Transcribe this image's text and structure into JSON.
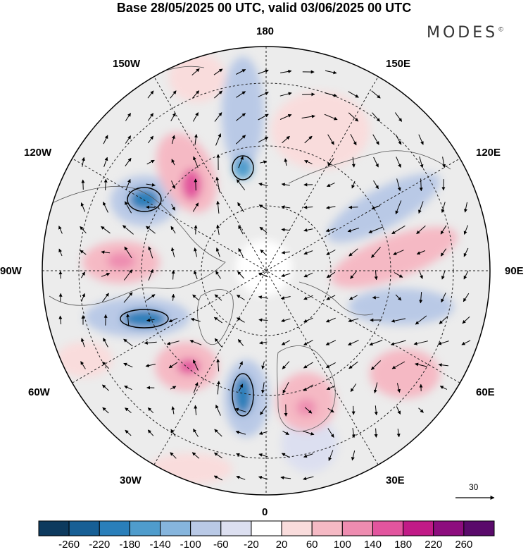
{
  "title": "Base 28/05/2025 00 UTC, valid 03/06/2025 00 UTC",
  "brand": {
    "name": "MODES",
    "mark": "©"
  },
  "longitude_labels": [
    "180",
    "150E",
    "120E",
    "90E",
    "60E",
    "30E",
    "0",
    "30W",
    "60W",
    "90W",
    "120W",
    "150W"
  ],
  "reference_vector": {
    "label": "30"
  },
  "colorbar": {
    "ticks": [
      "-260",
      "-220",
      "-180",
      "-140",
      "-100",
      "-60",
      "-20",
      "20",
      "60",
      "100",
      "140",
      "180",
      "220",
      "260"
    ],
    "colors": [
      "#0d3a5e",
      "#175f95",
      "#2a7fba",
      "#4f9ccc",
      "#86b5dd",
      "#b9c9e6",
      "#dcdff0",
      "#ffffff",
      "#f9dcdc",
      "#f5b9c4",
      "#ee8cb0",
      "#e2559e",
      "#c11b87",
      "#8d0d7e",
      "#5a0a6b"
    ]
  },
  "projection": "north polar stereographic",
  "palette": {
    "negative": "#2a7fba",
    "positive": "#e2559e",
    "neutral": "#ececec"
  }
}
